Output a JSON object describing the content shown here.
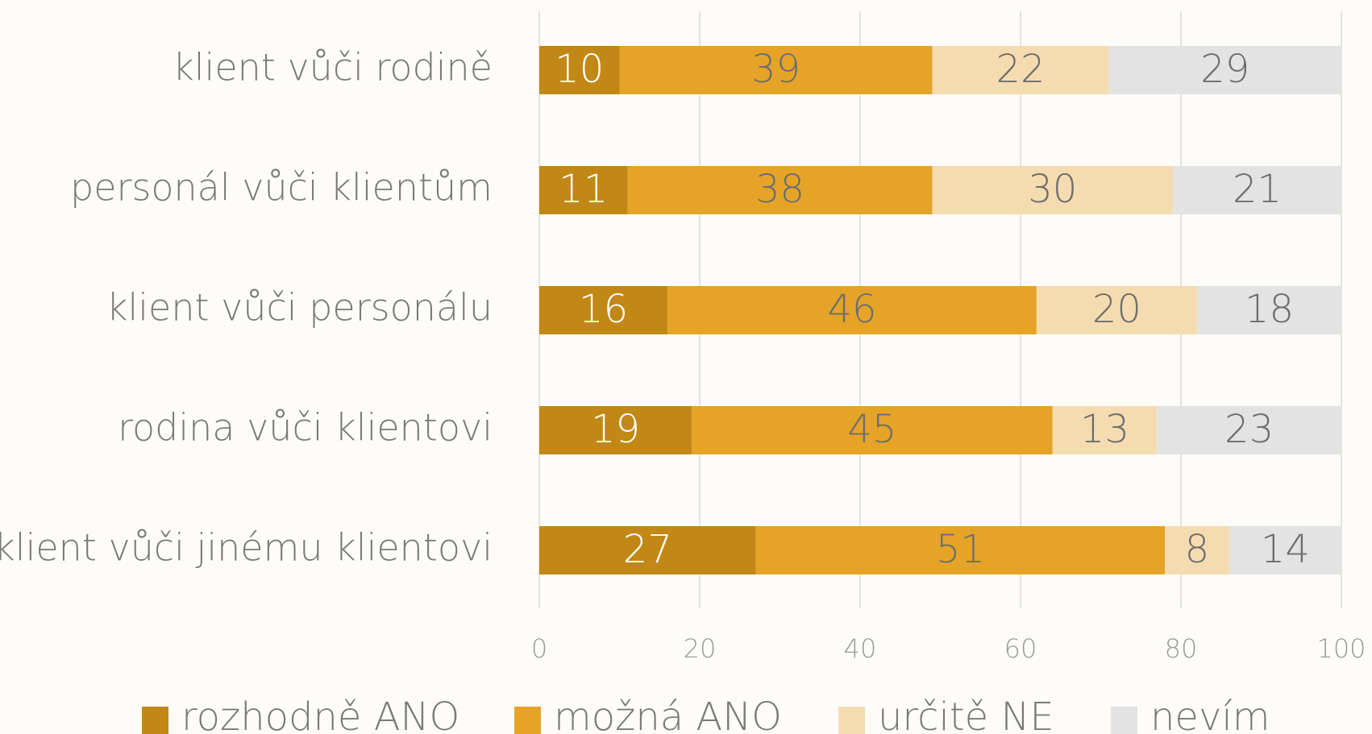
{
  "chart_data": {
    "type": "stacked_bar_horizontal",
    "categories": [
      "klient vůči rodině",
      "personál vůči klientům",
      "klient vůči personálu",
      "rodina vůči klientovi",
      "klient vůči jinému klientovi"
    ],
    "series": [
      {
        "name": "rozhodně ANO",
        "color": "#c18816",
        "label_color": "#ffffff",
        "values": [
          10,
          11,
          16,
          19,
          27
        ]
      },
      {
        "name": "možná ANO",
        "color": "#e5a428",
        "label_color": "#6e6e6e",
        "values": [
          39,
          38,
          46,
          45,
          51
        ]
      },
      {
        "name": "určitě NE",
        "color": "#f5dcb0",
        "label_color": "#6e6e6e",
        "values": [
          22,
          30,
          20,
          13,
          8
        ]
      },
      {
        "name": "nevím",
        "color": "#e3e3e3",
        "label_color": "#6e6e6e",
        "values": [
          29,
          21,
          18,
          23,
          14
        ]
      }
    ],
    "xlim": [
      0,
      100
    ],
    "xticks": [
      0,
      20,
      40,
      60,
      80,
      100
    ],
    "grid": true,
    "legend": "bottom"
  }
}
